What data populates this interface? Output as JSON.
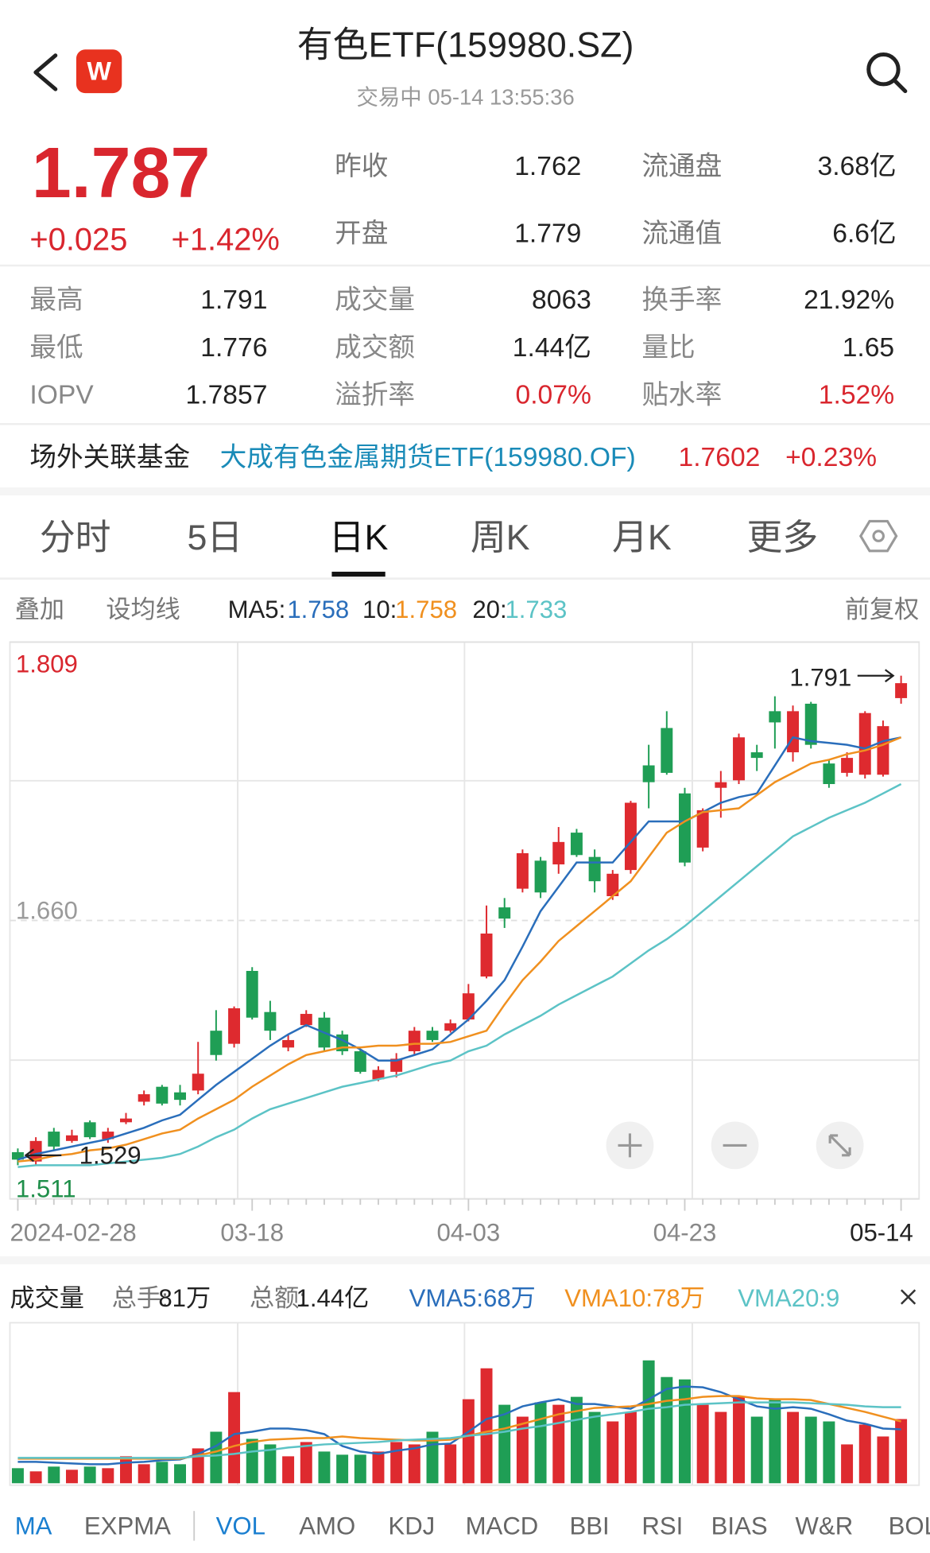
{
  "header": {
    "title": "有色ETF(159980.SZ)",
    "status": "交易中 05-14 13:55:36",
    "logo": "W"
  },
  "quote": {
    "price": 1.787,
    "change": "+0.025",
    "change_pct": "+1.42%",
    "summary": [
      [
        {
          "label": "昨收",
          "value": 1.762
        },
        {
          "label": "流通盘",
          "value": "3.68亿"
        }
      ],
      [
        {
          "label": "开盘",
          "value": 1.779
        },
        {
          "label": "流通值",
          "value": "6.6亿"
        }
      ]
    ],
    "details": [
      [
        {
          "label": "最高",
          "value": 1.791
        },
        {
          "label": "成交量",
          "value": 8063
        },
        {
          "label": "换手率",
          "value": "21.92%"
        }
      ],
      [
        {
          "label": "最低",
          "value": 1.776
        },
        {
          "label": "成交额",
          "value": "1.44亿"
        },
        {
          "label": "量比",
          "value": 1.65
        }
      ],
      [
        {
          "label": "IOPV",
          "value": 1.7857
        },
        {
          "label": "溢折率",
          "value": "0.07%"
        },
        {
          "label": "贴水率",
          "value": "1.52%"
        }
      ]
    ]
  },
  "fund": {
    "label": "场外关联基金",
    "name": "大成有色金属期货ETF(159980.OF)",
    "nav": 1.7602,
    "change": "+0.23%"
  },
  "tabs": [
    "分时",
    "5日",
    "日K",
    "周K",
    "月K",
    "更多"
  ],
  "toolbar": {
    "overlay": "叠加",
    "set_ma": "设均线",
    "adjust": "前复权"
  },
  "chart_data": [
    {
      "type": "candlestick",
      "x": [
        "2024-02-28",
        null,
        null,
        null,
        null,
        null,
        null,
        null,
        null,
        null,
        null,
        null,
        null,
        "03-18",
        null,
        null,
        null,
        null,
        null,
        null,
        null,
        null,
        null,
        null,
        null,
        "04-03",
        null,
        null,
        null,
        null,
        null,
        null,
        null,
        null,
        null,
        null,
        null,
        "04-23",
        null,
        null,
        null,
        null,
        null,
        null,
        null,
        null,
        null,
        null,
        null,
        "05-14"
      ],
      "open": [
        1.536,
        1.531,
        1.547,
        1.542,
        1.552,
        1.543,
        1.552,
        1.563,
        1.571,
        1.568,
        1.569,
        1.601,
        1.594,
        1.633,
        1.611,
        1.592,
        1.604,
        1.608,
        1.599,
        1.59,
        1.575,
        1.579,
        1.59,
        1.601,
        1.601,
        1.607,
        1.63,
        1.667,
        1.677,
        1.692,
        1.69,
        1.707,
        1.694,
        1.673,
        1.687,
        1.743,
        1.763,
        1.728,
        1.699,
        1.731,
        1.735,
        1.75,
        1.772,
        1.75,
        1.776,
        1.744,
        1.739,
        1.738,
        1.738,
        1.779
      ],
      "high": [
        1.538,
        1.544,
        1.549,
        1.548,
        1.553,
        1.549,
        1.557,
        1.569,
        1.572,
        1.572,
        1.595,
        1.612,
        1.614,
        1.635,
        1.617,
        1.599,
        1.612,
        1.611,
        1.601,
        1.591,
        1.582,
        1.589,
        1.603,
        1.603,
        1.607,
        1.626,
        1.668,
        1.672,
        1.698,
        1.694,
        1.71,
        1.709,
        1.698,
        1.687,
        1.724,
        1.754,
        1.772,
        1.731,
        1.72,
        1.74,
        1.76,
        1.754,
        1.78,
        1.775,
        1.777,
        1.746,
        1.75,
        1.772,
        1.767,
        1.791
      ],
      "low": [
        1.529,
        1.529,
        1.537,
        1.541,
        1.543,
        1.541,
        1.551,
        1.561,
        1.561,
        1.561,
        1.567,
        1.585,
        1.592,
        1.607,
        1.596,
        1.59,
        1.603,
        1.59,
        1.588,
        1.578,
        1.574,
        1.576,
        1.588,
        1.595,
        1.6,
        1.606,
        1.629,
        1.656,
        1.675,
        1.672,
        1.685,
        1.694,
        1.675,
        1.671,
        1.685,
        1.72,
        1.738,
        1.689,
        1.697,
        1.715,
        1.733,
        1.74,
        1.752,
        1.745,
        1.752,
        1.731,
        1.737,
        1.736,
        1.737,
        1.776
      ],
      "close": [
        1.532,
        1.542,
        1.539,
        1.545,
        1.544,
        1.547,
        1.554,
        1.567,
        1.562,
        1.564,
        1.578,
        1.588,
        1.613,
        1.608,
        1.601,
        1.596,
        1.61,
        1.592,
        1.59,
        1.579,
        1.58,
        1.586,
        1.601,
        1.596,
        1.605,
        1.621,
        1.653,
        1.661,
        1.696,
        1.675,
        1.702,
        1.695,
        1.681,
        1.685,
        1.723,
        1.734,
        1.739,
        1.691,
        1.719,
        1.734,
        1.758,
        1.747,
        1.766,
        1.772,
        1.754,
        1.733,
        1.747,
        1.771,
        1.764,
        1.787
      ],
      "up_color": "#de2a2f",
      "down_color": "#1f9e55",
      "ylim": [
        1.511,
        1.809
      ],
      "yticks": [
        1.809,
        {
          "value": 1.66,
          "label": "1.660"
        },
        1.511
      ],
      "ytick_colors": [
        "#d9262e",
        "#9a9a9a",
        "#1f8f4a"
      ],
      "grid": true,
      "annotations": {
        "max": 1.791,
        "min": 1.529
      },
      "series": [
        {
          "name": "MA5:",
          "color": "#2a6ebb",
          "values": [
            1.532,
            1.535,
            1.537,
            1.539,
            1.541,
            1.543,
            1.546,
            1.549,
            1.553,
            1.556,
            1.564,
            1.572,
            1.579,
            1.586,
            1.593,
            1.599,
            1.604,
            1.6,
            1.596,
            1.591,
            1.585,
            1.585,
            1.588,
            1.591,
            1.599,
            1.607,
            1.617,
            1.628,
            1.646,
            1.665,
            1.678,
            1.691,
            1.691,
            1.691,
            1.702,
            1.713,
            1.713,
            1.713,
            1.718,
            1.723,
            1.726,
            1.728,
            1.743,
            1.758,
            1.756,
            1.755,
            1.754,
            1.752,
            1.756,
            1.758
          ]
        },
        {
          "name": "10:",
          "color": "#f0901f",
          "values": [
            1.531,
            1.532,
            1.534,
            1.535,
            1.537,
            1.538,
            1.54,
            1.543,
            1.546,
            1.548,
            1.554,
            1.559,
            1.564,
            1.571,
            1.577,
            1.583,
            1.588,
            1.59,
            1.592,
            1.592,
            1.593,
            1.593,
            1.594,
            1.594,
            1.595,
            1.598,
            1.601,
            1.615,
            1.628,
            1.638,
            1.649,
            1.657,
            1.665,
            1.673,
            1.681,
            1.694,
            1.707,
            1.713,
            1.718,
            1.719,
            1.72,
            1.727,
            1.734,
            1.739,
            1.744,
            1.746,
            1.749,
            1.751,
            1.754,
            1.758
          ]
        },
        {
          "name": "20:",
          "color": "#5cc3c6",
          "values": [
            1.528,
            1.529,
            1.529,
            1.529,
            1.529,
            1.53,
            1.531,
            1.532,
            1.533,
            1.535,
            1.539,
            1.544,
            1.548,
            1.554,
            1.559,
            1.562,
            1.565,
            1.568,
            1.571,
            1.573,
            1.575,
            1.577,
            1.58,
            1.583,
            1.585,
            1.59,
            1.593,
            1.599,
            1.604,
            1.609,
            1.615,
            1.62,
            1.625,
            1.63,
            1.637,
            1.644,
            1.65,
            1.657,
            1.665,
            1.673,
            1.681,
            1.689,
            1.697,
            1.705,
            1.71,
            1.715,
            1.719,
            1.723,
            1.728,
            1.733
          ]
        }
      ]
    },
    {
      "type": "bar",
      "title": "成交量",
      "stats": [
        {
          "label": "总手:",
          "value": "81万"
        },
        {
          "label": "总额:",
          "value": "1.44亿"
        }
      ],
      "values": [
        19,
        15,
        21,
        17,
        21,
        19,
        34,
        24,
        27,
        24,
        44,
        65,
        115,
        56,
        49,
        34,
        52,
        40,
        36,
        36,
        40,
        52,
        49,
        65,
        49,
        106,
        145,
        99,
        84,
        102,
        99,
        109,
        90,
        78,
        90,
        155,
        134,
        131,
        99,
        90,
        109,
        84,
        106,
        90,
        84,
        78,
        49,
        74,
        59,
        81
      ],
      "series": [
        {
          "name": "VMA5:68万",
          "color": "#2a6ebb",
          "values": [
            27,
            27,
            26,
            25,
            24,
            24,
            26,
            27,
            29,
            30,
            37,
            47,
            62,
            65,
            69,
            69,
            67,
            62,
            47,
            40,
            37,
            41,
            44,
            49,
            50,
            65,
            81,
            87,
            97,
            102,
            106,
            100,
            100,
            97,
            94,
            106,
            119,
            122,
            121,
            115,
            106,
            97,
            94,
            96,
            94,
            87,
            79,
            75,
            69,
            68
          ]
        },
        {
          "name": "VMA10:78万",
          "color": "#f0901f",
          "values": [
            31,
            31,
            31,
            31,
            31,
            31,
            31,
            31,
            31,
            31,
            35,
            40,
            47,
            52,
            55,
            56,
            57,
            57,
            59,
            57,
            56,
            55,
            54,
            54,
            55,
            60,
            65,
            69,
            75,
            81,
            87,
            91,
            95,
            96,
            97,
            100,
            104,
            106,
            109,
            110,
            110,
            107,
            106,
            106,
            105,
            100,
            95,
            90,
            84,
            78
          ]
        },
        {
          "name": "VMA20:9",
          "color": "#5cc3c6",
          "values": [
            32,
            32,
            32,
            32,
            32,
            32,
            32,
            32,
            32,
            32,
            34,
            35,
            37,
            40,
            42,
            45,
            47,
            49,
            50,
            51,
            52,
            54,
            55,
            56,
            57,
            60,
            62,
            65,
            69,
            72,
            76,
            80,
            84,
            87,
            90,
            94,
            96,
            99,
            100,
            101,
            102,
            102,
            102,
            102,
            101,
            100,
            99,
            97,
            96,
            96
          ]
        }
      ]
    }
  ],
  "indicator_tabs": [
    "MA",
    "EXPMA",
    "VOL",
    "AMO",
    "KDJ",
    "MACD",
    "BBI",
    "RSI",
    "BIAS",
    "W&R",
    "BOLL"
  ]
}
